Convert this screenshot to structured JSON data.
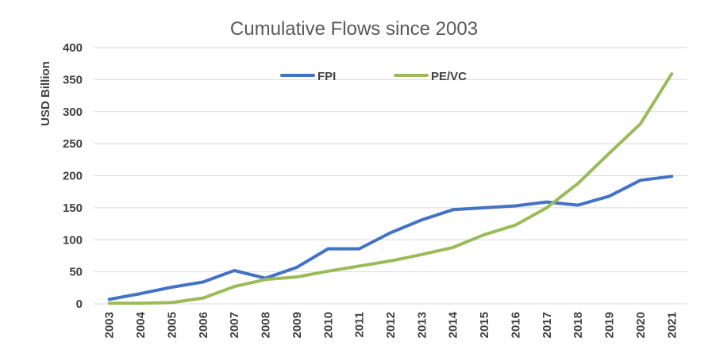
{
  "chart_data": {
    "type": "line",
    "title": "Cumulative Flows since 2003",
    "xlabel": "",
    "ylabel": "USD Billion",
    "x": [
      "2003",
      "2004",
      "2005",
      "2006",
      "2007",
      "2008",
      "2009",
      "2010",
      "2011",
      "2012",
      "2013",
      "2014",
      "2015",
      "2016",
      "2017",
      "2018",
      "2019",
      "2020",
      "2021"
    ],
    "ylim": [
      0,
      400
    ],
    "yticks": [
      0,
      50,
      100,
      150,
      200,
      250,
      300,
      350,
      400
    ],
    "grid": true,
    "legend_position": "top-center",
    "series": [
      {
        "name": "FPI",
        "color": "#4472c4",
        "values": [
          7,
          16,
          26,
          34,
          52,
          40,
          57,
          86,
          86,
          111,
          131,
          147,
          150,
          153,
          159,
          154,
          168,
          193,
          199
        ]
      },
      {
        "name": "PE/VC",
        "color": "#9bbb59",
        "values": [
          1,
          1,
          2,
          9,
          27,
          38,
          42,
          51,
          59,
          67,
          77,
          88,
          108,
          123,
          150,
          188,
          235,
          281,
          359
        ]
      }
    ]
  }
}
